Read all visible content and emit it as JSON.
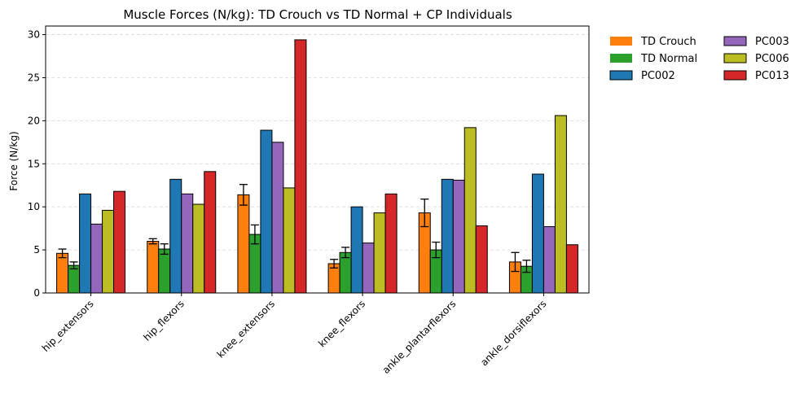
{
  "chart_data": {
    "type": "bar",
    "title": "Muscle Forces (N/kg): TD Crouch vs TD Normal + CP Individuals",
    "xlabel": "",
    "ylabel": "Force (N/kg)",
    "ylim": [
      0,
      31
    ],
    "yticks": [
      0,
      5,
      10,
      15,
      20,
      25,
      30
    ],
    "grid": "y-dashed",
    "legend_placement": "outside-top-right",
    "categories": [
      "hip_extensors",
      "hip_flexors",
      "knee_extensors",
      "knee_flexors",
      "ankle_plantarflexors",
      "ankle_dorsiflexors"
    ],
    "series": [
      {
        "name": "TD Crouch",
        "color": "#ff7f0e",
        "values": [
          4.6,
          6.0,
          11.4,
          3.4,
          9.3,
          3.6
        ],
        "errors": [
          0.5,
          0.3,
          1.2,
          0.5,
          1.6,
          1.1
        ]
      },
      {
        "name": "TD Normal",
        "color": "#2ca02c",
        "values": [
          3.2,
          5.1,
          6.8,
          4.7,
          5.0,
          3.1
        ],
        "errors": [
          0.4,
          0.6,
          1.1,
          0.6,
          0.9,
          0.7
        ]
      },
      {
        "name": "PC002",
        "color": "#1f77b4",
        "values": [
          11.5,
          13.2,
          18.9,
          10.0,
          13.2,
          13.8
        ]
      },
      {
        "name": "PC003",
        "color": "#9467bd",
        "values": [
          8.0,
          11.5,
          17.5,
          5.8,
          13.1,
          7.7
        ]
      },
      {
        "name": "PC006",
        "color": "#bcbd22",
        "values": [
          9.6,
          10.3,
          12.2,
          9.3,
          19.2,
          20.6
        ]
      },
      {
        "name": "PC013",
        "color": "#d62728",
        "values": [
          11.8,
          14.1,
          29.4,
          11.5,
          7.8,
          5.6
        ]
      }
    ]
  }
}
